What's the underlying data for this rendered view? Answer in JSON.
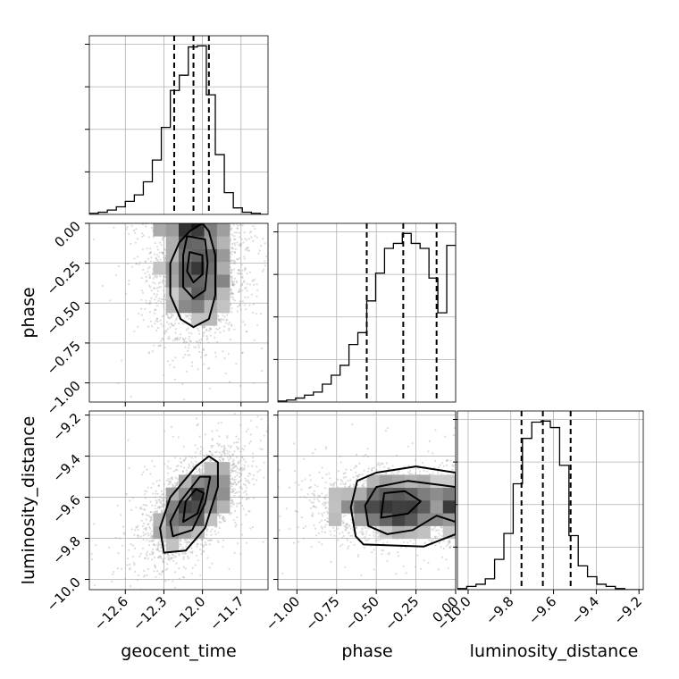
{
  "chart_data": {
    "type": "corner",
    "parameters": [
      "geocent_time",
      "phase",
      "luminosity_distance"
    ],
    "ranges": {
      "geocent_time": [
        -12.88,
        -11.49
      ],
      "phase": [
        -1.12,
        0.0
      ],
      "luminosity_distance": [
        -10.05,
        -9.18
      ]
    },
    "ticks": {
      "geocent_time": [
        -12.6,
        -12.3,
        -12.0,
        -11.7
      ],
      "phase": [
        -1.0,
        -0.75,
        -0.5,
        -0.25,
        0.0
      ],
      "luminosity_distance": [
        -10.0,
        -9.8,
        -9.6,
        -9.4,
        -9.2
      ]
    },
    "tick_labels": {
      "geocent_time": [
        "−12.6",
        "−12.3",
        "−12.0",
        "−11.7"
      ],
      "phase": [
        "−1.00",
        "−0.75",
        "−0.50",
        "−0.25",
        "0.00"
      ],
      "luminosity_distance": [
        "−10.0",
        "−9.8",
        "−9.6",
        "−9.4",
        "−9.2"
      ]
    },
    "grid": true,
    "quantiles": {
      "geocent_time": [
        -12.22,
        -12.07,
        -11.95
      ],
      "phase": [
        -0.56,
        -0.33,
        -0.12
      ],
      "luminosity_distance": [
        -9.75,
        -9.65,
        -9.52
      ]
    },
    "histograms": {
      "geocent_time": {
        "edges": [
          -12.88,
          -12.81,
          -12.74,
          -12.67,
          -12.6,
          -12.53,
          -12.46,
          -12.39,
          -12.32,
          -12.25,
          -12.18,
          -12.11,
          -12.04,
          -11.97,
          -11.9,
          -11.83,
          -11.76,
          -11.69,
          -11.62,
          -11.55,
          -11.49
        ],
        "counts": [
          1,
          2,
          4,
          7,
          12,
          18,
          30,
          50,
          80,
          114,
          128,
          154,
          155,
          110,
          55,
          20,
          6,
          2,
          1,
          0
        ]
      },
      "phase": {
        "edges": [
          -1.12,
          -1.064,
          -1.008,
          -0.952,
          -0.896,
          -0.84,
          -0.784,
          -0.728,
          -0.672,
          -0.616,
          -0.56,
          -0.504,
          -0.448,
          -0.392,
          -0.336,
          -0.28,
          -0.224,
          -0.168,
          -0.112,
          -0.056,
          0.0
        ],
        "counts": [
          1,
          2,
          4,
          7,
          10,
          18,
          27,
          37,
          58,
          70,
          102,
          130,
          155,
          160,
          170,
          160,
          155,
          125,
          90,
          158
        ]
      },
      "luminosity_distance": {
        "edges": [
          -10.05,
          -10.0065,
          -9.963,
          -9.9195,
          -9.876,
          -9.8325,
          -9.789,
          -9.7455,
          -9.702,
          -9.6585,
          -9.615,
          -9.5715,
          -9.528,
          -9.4845,
          -9.441,
          -9.3975,
          -9.354,
          -9.3105,
          -9.267,
          -9.2235,
          -9.18
        ],
        "counts": [
          1,
          3,
          5,
          10,
          28,
          52,
          98,
          140,
          155,
          156,
          150,
          115,
          50,
          22,
          12,
          5,
          3,
          1,
          0,
          0
        ]
      }
    },
    "pairs": [
      {
        "x": "geocent_time",
        "y": "phase",
        "center": [
          -12.05,
          -0.3
        ],
        "spread": [
          0.16,
          0.2
        ],
        "rho": 0.0,
        "contours": [
          [
            [
              -12.1,
              -0.05
            ],
            [
              -12.18,
              -0.12
            ],
            [
              -12.25,
              -0.25
            ],
            [
              -12.25,
              -0.45
            ],
            [
              -12.17,
              -0.6
            ],
            [
              -12.07,
              -0.65
            ],
            [
              -11.95,
              -0.6
            ],
            [
              -11.9,
              -0.45
            ],
            [
              -11.9,
              -0.2
            ],
            [
              -11.95,
              -0.05
            ],
            [
              -12.0,
              0.0
            ]
          ],
          [
            [
              -12.12,
              -0.08
            ],
            [
              -12.15,
              -0.2
            ],
            [
              -12.15,
              -0.4
            ],
            [
              -12.07,
              -0.47
            ],
            [
              -11.98,
              -0.42
            ],
            [
              -11.96,
              -0.25
            ],
            [
              -11.98,
              -0.1
            ]
          ],
          [
            [
              -12.1,
              -0.18
            ],
            [
              -12.12,
              -0.3
            ],
            [
              -12.07,
              -0.37
            ],
            [
              -12.0,
              -0.32
            ],
            [
              -12.0,
              -0.2
            ]
          ]
        ]
      },
      {
        "x": "geocent_time",
        "y": "luminosity_distance",
        "center": [
          -12.07,
          -9.64
        ],
        "spread": [
          0.18,
          0.12
        ],
        "rho": 0.6,
        "contours": [
          [
            [
              -12.3,
              -9.87
            ],
            [
              -12.13,
              -9.86
            ],
            [
              -11.98,
              -9.75
            ],
            [
              -11.88,
              -9.55
            ],
            [
              -11.88,
              -9.43
            ],
            [
              -11.95,
              -9.4
            ],
            [
              -12.05,
              -9.45
            ],
            [
              -12.25,
              -9.6
            ],
            [
              -12.33,
              -9.75
            ]
          ],
          [
            [
              -12.23,
              -9.79
            ],
            [
              -12.08,
              -9.76
            ],
            [
              -11.98,
              -9.63
            ],
            [
              -11.94,
              -9.5
            ],
            [
              -12.02,
              -9.5
            ],
            [
              -12.17,
              -9.62
            ],
            [
              -12.25,
              -9.72
            ]
          ],
          [
            [
              -12.15,
              -9.72
            ],
            [
              -12.04,
              -9.68
            ],
            [
              -11.99,
              -9.58
            ],
            [
              -12.05,
              -9.56
            ],
            [
              -12.13,
              -9.62
            ]
          ]
        ]
      },
      {
        "x": "phase",
        "y": "luminosity_distance",
        "center": [
          -0.38,
          -9.64
        ],
        "spread": [
          0.22,
          0.08
        ],
        "rho": 0.0,
        "contours": [
          [
            [
              -0.63,
              -9.79
            ],
            [
              -0.58,
              -9.83
            ],
            [
              -0.2,
              -9.84
            ],
            [
              0.0,
              -9.78
            ],
            [
              0.0,
              -9.48
            ],
            [
              -0.25,
              -9.45
            ],
            [
              -0.5,
              -9.48
            ],
            [
              -0.62,
              -9.52
            ],
            [
              -0.66,
              -9.65
            ]
          ],
          [
            [
              -0.55,
              -9.74
            ],
            [
              -0.43,
              -9.78
            ],
            [
              -0.27,
              -9.76
            ],
            [
              -0.12,
              -9.69
            ],
            [
              0.0,
              -9.72
            ],
            [
              0.0,
              -9.55
            ],
            [
              -0.1,
              -9.54
            ],
            [
              -0.3,
              -9.52
            ],
            [
              -0.5,
              -9.55
            ],
            [
              -0.57,
              -9.64
            ]
          ],
          [
            [
              -0.47,
              -9.7
            ],
            [
              -0.3,
              -9.68
            ],
            [
              -0.22,
              -9.62
            ],
            [
              -0.32,
              -9.57
            ],
            [
              -0.45,
              -9.58
            ]
          ]
        ]
      }
    ]
  }
}
